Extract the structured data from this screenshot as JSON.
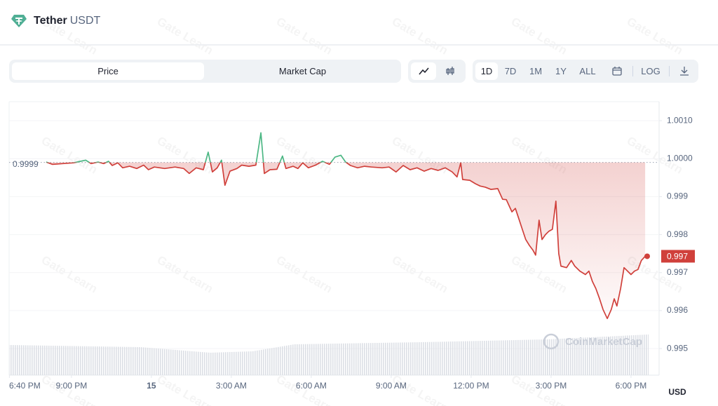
{
  "header": {
    "name": "Tether",
    "symbol": "USDT"
  },
  "tabs": [
    "Price",
    "Market Cap"
  ],
  "ranges": [
    "1D",
    "7D",
    "1M",
    "1Y",
    "ALL"
  ],
  "log_button": "LOG",
  "chart_data": {
    "type": "line",
    "x": [
      20.05,
      20.29,
      20.68,
      21.08,
      21.34,
      21.53,
      21.74,
      22.0,
      22.21,
      22.39,
      22.53,
      22.74,
      22.92,
      23.18,
      23.45,
      23.71,
      23.89,
      24.11,
      24.5,
      24.89,
      25.21,
      25.42,
      25.68,
      25.95,
      26.13,
      26.29,
      26.47,
      26.63,
      26.76,
      26.95,
      27.21,
      27.39,
      27.66,
      27.92,
      28.11,
      28.24,
      28.45,
      28.71,
      28.92,
      29.05,
      29.32,
      29.5,
      29.68,
      29.89,
      30.16,
      30.42,
      30.68,
      30.89,
      31.11,
      31.29,
      31.47,
      31.74,
      32.0,
      32.26,
      32.66,
      32.92,
      33.18,
      33.45,
      33.71,
      33.97,
      34.24,
      34.5,
      34.76,
      35.03,
      35.29,
      35.47,
      35.61,
      35.68,
      35.95,
      36.16,
      36.34,
      36.53,
      36.74,
      37.0,
      37.18,
      37.32,
      37.53,
      37.66,
      37.79,
      37.92,
      38.05,
      38.18,
      38.32,
      38.42,
      38.55,
      38.66,
      38.79,
      38.92,
      39.05,
      39.18,
      39.29,
      39.37,
      39.58,
      39.76,
      39.89,
      40.08,
      40.29,
      40.42,
      40.55,
      40.68,
      40.82,
      40.95,
      41.11,
      41.26,
      41.37,
      41.47,
      41.61,
      41.74,
      41.87,
      42.0,
      42.13,
      42.26,
      42.39,
      42.53
    ],
    "series": [
      {
        "name": "Price",
        "color": "#d0403b",
        "up_color": "#4cb784",
        "values": [
          0.99991,
          0.99985,
          0.99987,
          0.99989,
          0.99993,
          0.99996,
          0.99987,
          0.99991,
          0.99987,
          0.99993,
          0.99982,
          0.99989,
          0.99976,
          0.9998,
          0.99974,
          0.99983,
          0.99971,
          0.99978,
          0.99974,
          0.99978,
          0.99974,
          0.99961,
          0.99976,
          0.99971,
          1.00017,
          0.99965,
          0.99976,
          0.99996,
          0.9993,
          0.99967,
          0.99974,
          0.99983,
          0.9998,
          0.99983,
          1.00068,
          0.99961,
          0.99971,
          0.99972,
          1.00007,
          0.99974,
          0.9998,
          0.99974,
          0.99989,
          0.99976,
          0.99983,
          0.99993,
          0.99985,
          1.00004,
          1.00009,
          0.99991,
          0.99982,
          0.99976,
          0.9998,
          0.99978,
          0.99976,
          0.99978,
          0.99965,
          0.99982,
          0.99971,
          0.99976,
          0.99967,
          0.99974,
          0.99969,
          0.99976,
          0.99965,
          0.99952,
          0.99989,
          0.99945,
          0.99943,
          0.99934,
          0.99928,
          0.99925,
          0.99919,
          0.99921,
          0.99893,
          0.99892,
          0.9986,
          0.99869,
          0.99842,
          0.99814,
          0.99787,
          0.99772,
          0.99759,
          0.99746,
          0.99838,
          0.99787,
          0.998,
          0.99809,
          0.99814,
          0.99888,
          0.9975,
          0.99717,
          0.99713,
          0.99732,
          0.99717,
          0.99704,
          0.99695,
          0.99704,
          0.99677,
          0.99658,
          0.99631,
          0.99603,
          0.99579,
          0.99603,
          0.99631,
          0.99612,
          0.99658,
          0.99713,
          0.99704,
          0.99695,
          0.99704,
          0.99708,
          0.99732,
          0.99743
        ]
      }
    ],
    "baseline": {
      "value": 0.9999,
      "label": "0.9999"
    },
    "current_price": {
      "value": 0.99743,
      "label": "0.997"
    },
    "xlim": [
      18.66,
      42.66
    ],
    "xticks": [
      {
        "value": 18.67,
        "label": "6:40 PM"
      },
      {
        "value": 21,
        "label": "9:00 PM"
      },
      {
        "value": 24,
        "label": "15"
      },
      {
        "value": 27,
        "label": "3:00 AM"
      },
      {
        "value": 30,
        "label": "6:00 AM"
      },
      {
        "value": 33,
        "label": "9:00 AM"
      },
      {
        "value": 36,
        "label": "12:00 PM"
      },
      {
        "value": 39,
        "label": "3:00 PM"
      },
      {
        "value": 42,
        "label": "6:00 PM"
      }
    ],
    "ylim": [
      0.9943,
      1.0015
    ],
    "yticks": [
      {
        "value": 1.001,
        "label": "1.0010"
      },
      {
        "value": 1.0,
        "label": "1.0000"
      },
      0.999,
      0.998,
      0.997,
      0.996,
      0.995
    ],
    "y_label": "USD",
    "grid": true,
    "watermarks": [
      "Gate Learn",
      "CoinMarketCap"
    ]
  }
}
